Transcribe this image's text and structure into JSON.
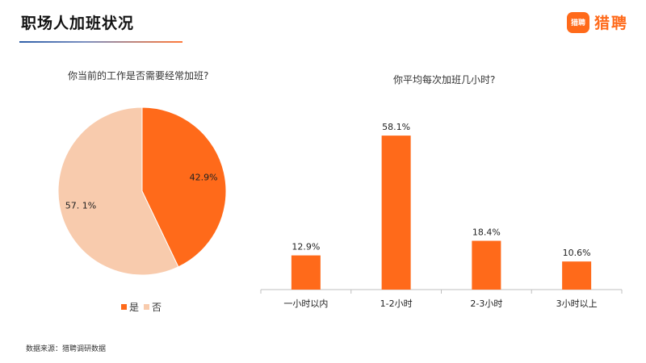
{
  "header": {
    "title": "职场人加班状况"
  },
  "brand": {
    "badge_text": "猎聘",
    "name": "猎聘"
  },
  "footer": {
    "source": "数据来源：猎聘调研数据"
  },
  "colors": {
    "primary": "#ff6a1a",
    "secondary": "#f8cbad"
  },
  "chart_data": [
    {
      "type": "pie",
      "title": "你当前的工作是否需要经常加班?",
      "labels": [
        "是",
        "否"
      ],
      "values": [
        42.9,
        57.1
      ],
      "value_labels": [
        "42.9%",
        "57. 1%"
      ],
      "colors": [
        "#ff6a1a",
        "#f8cbad"
      ],
      "legend": "bottom"
    },
    {
      "type": "bar",
      "title": "你平均每次加班几小时?",
      "categories": [
        "一小时以内",
        "1-2小时",
        "2-3小时",
        "3小时以上"
      ],
      "values": [
        12.9,
        58.1,
        18.4,
        10.6
      ],
      "value_labels": [
        "12.9%",
        "58.1%",
        "18.4%",
        "10.6%"
      ],
      "ylim": [
        0,
        70
      ],
      "color": "#ff6a1a",
      "grid": false
    }
  ]
}
